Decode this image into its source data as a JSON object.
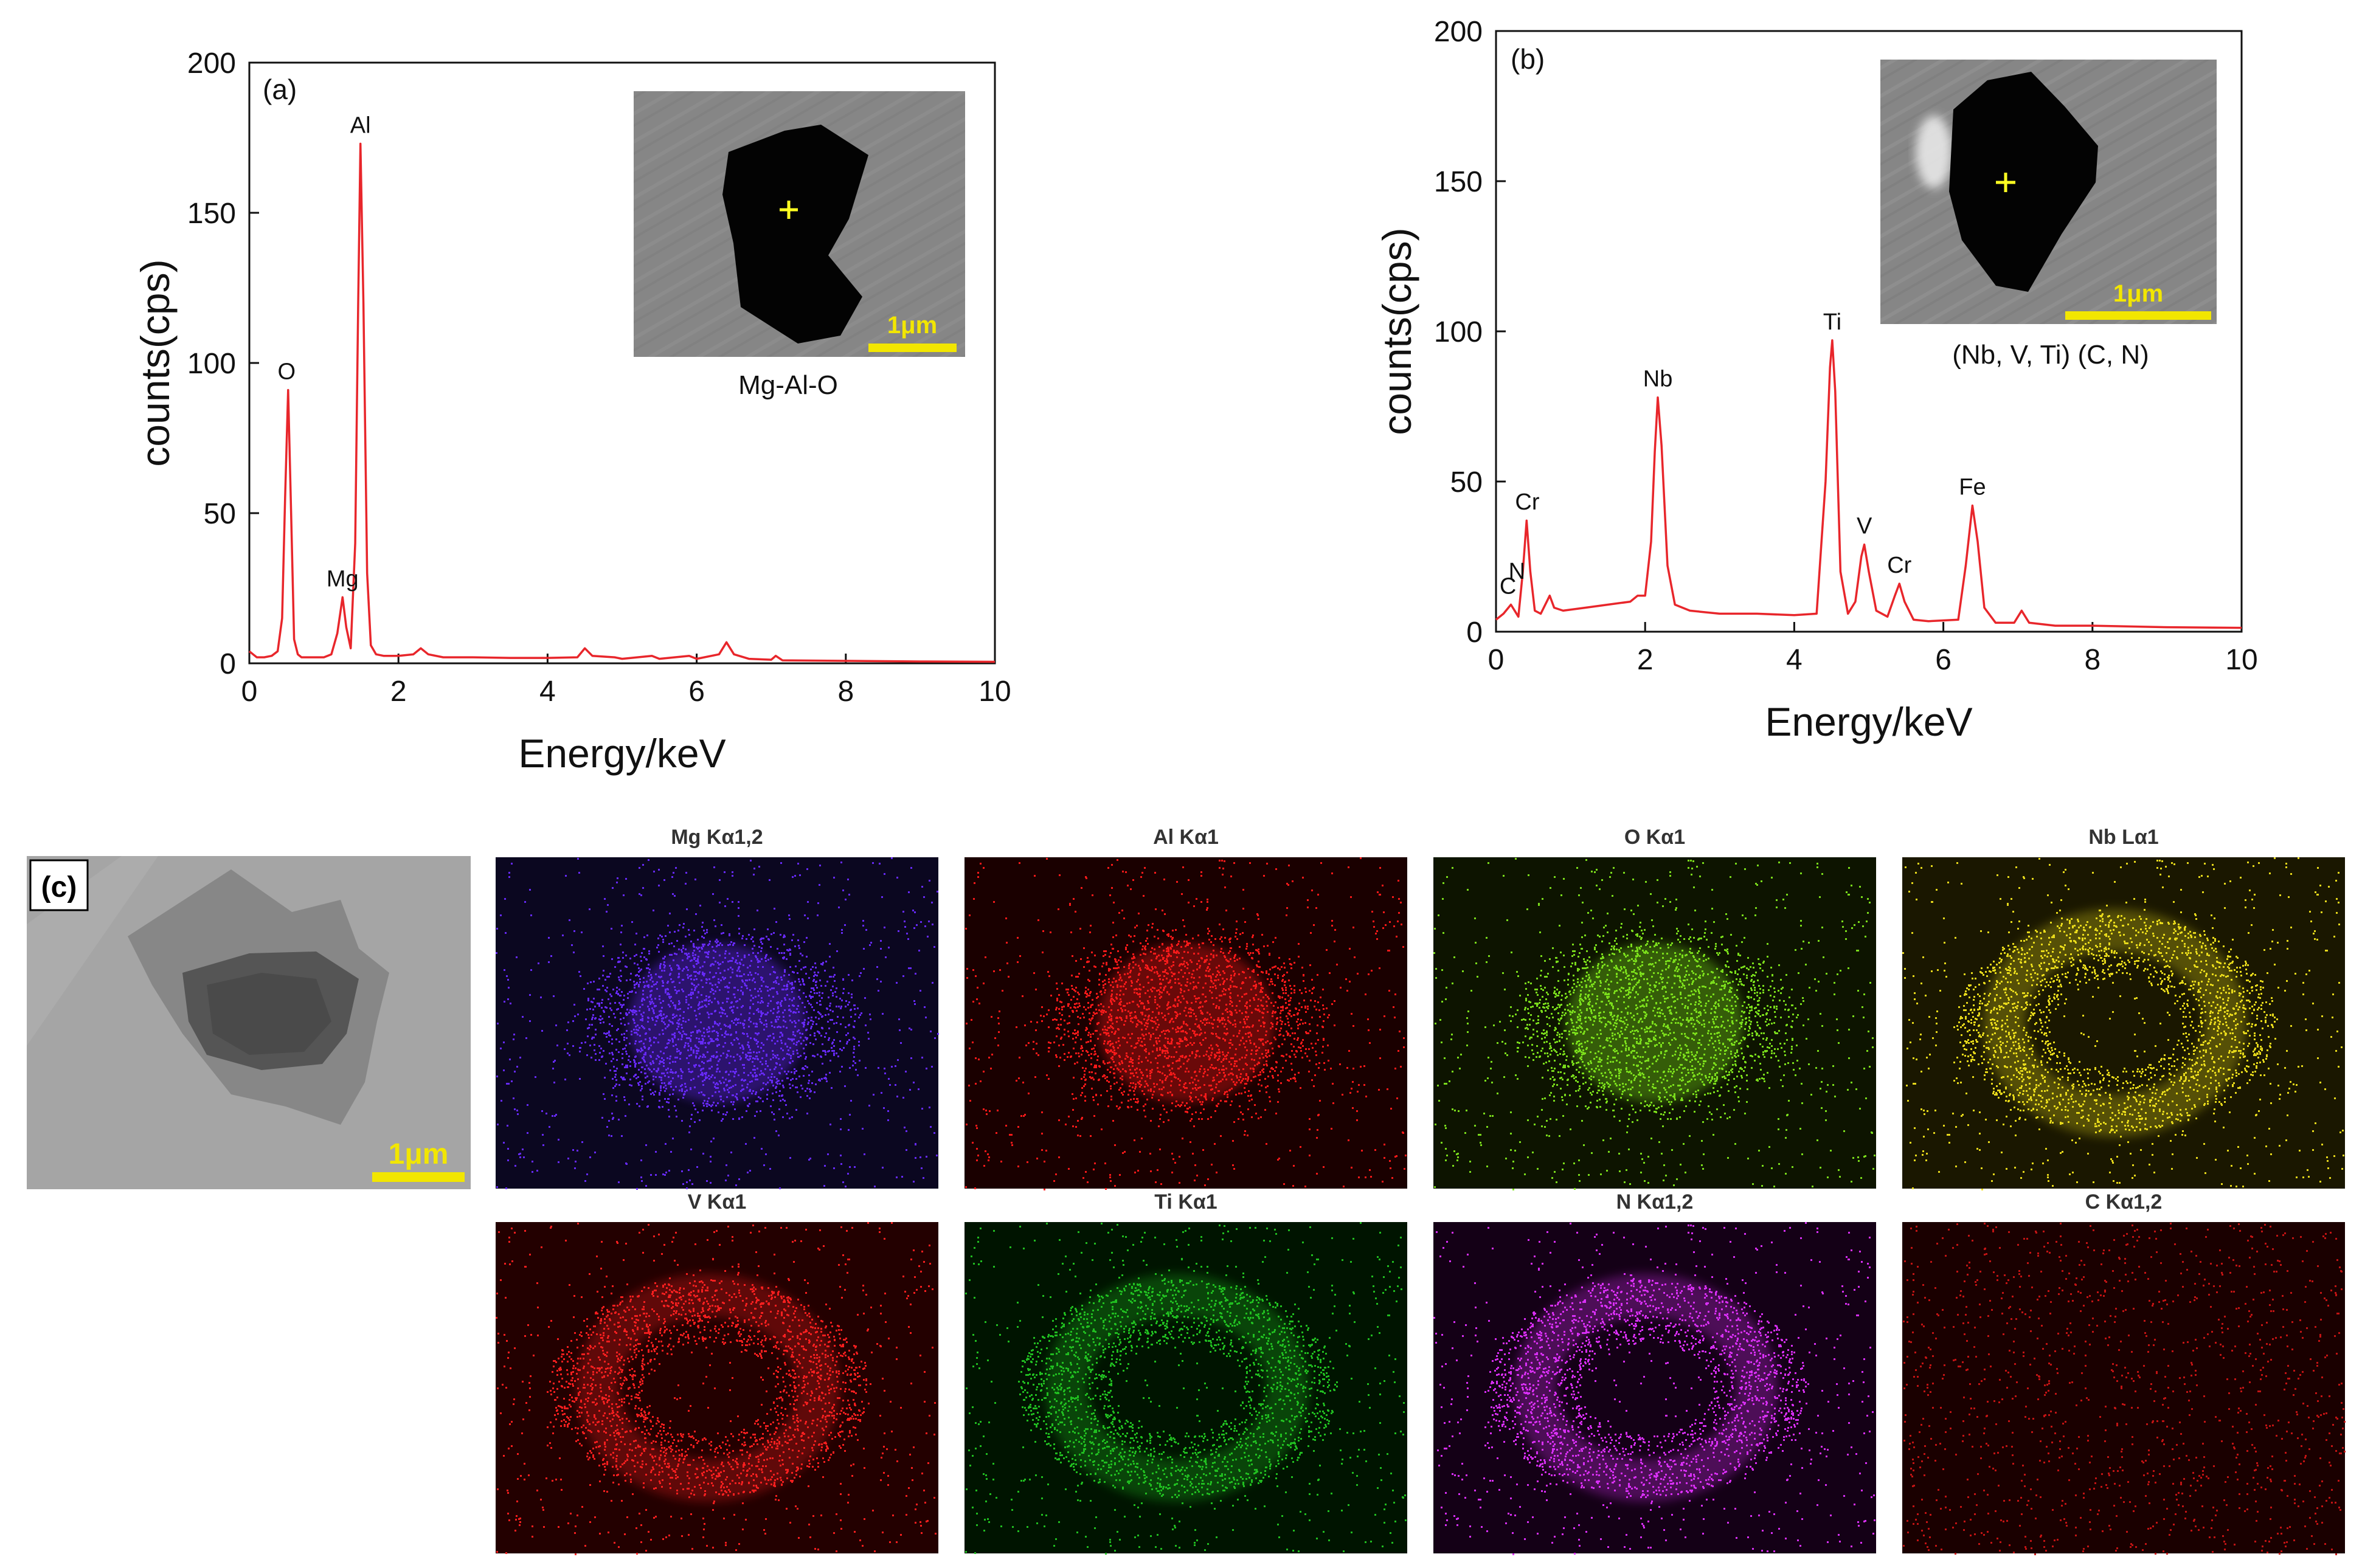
{
  "chart_data": [
    {
      "type": "line",
      "panel_label": "(a)",
      "xlabel": "Energy/keV",
      "ylabel": "counts(cps)",
      "xlim": [
        0,
        10
      ],
      "ylim": [
        0,
        200
      ],
      "xticks": [
        0,
        2,
        4,
        6,
        8,
        10
      ],
      "yticks": [
        0,
        50,
        100,
        150,
        200
      ],
      "line_color": "#e8262b",
      "series": [
        {
          "points": [
            [
              0,
              4
            ],
            [
              0.05,
              3
            ],
            [
              0.1,
              2
            ],
            [
              0.2,
              2
            ],
            [
              0.3,
              2.5
            ],
            [
              0.38,
              4
            ],
            [
              0.44,
              15
            ],
            [
              0.48,
              55
            ],
            [
              0.52,
              91
            ],
            [
              0.56,
              50
            ],
            [
              0.6,
              8
            ],
            [
              0.65,
              3
            ],
            [
              0.7,
              2
            ],
            [
              0.8,
              2
            ],
            [
              1.0,
              2
            ],
            [
              1.1,
              3
            ],
            [
              1.18,
              10
            ],
            [
              1.25,
              22
            ],
            [
              1.3,
              12
            ],
            [
              1.36,
              5
            ],
            [
              1.42,
              40
            ],
            [
              1.46,
              120
            ],
            [
              1.49,
              173
            ],
            [
              1.53,
              120
            ],
            [
              1.58,
              30
            ],
            [
              1.63,
              6
            ],
            [
              1.7,
              3
            ],
            [
              1.8,
              2.5
            ],
            [
              2.0,
              2.5
            ],
            [
              2.2,
              3
            ],
            [
              2.3,
              5
            ],
            [
              2.4,
              3
            ],
            [
              2.6,
              2
            ],
            [
              3.0,
              2
            ],
            [
              3.5,
              1.8
            ],
            [
              4.0,
              1.8
            ],
            [
              4.4,
              2
            ],
            [
              4.5,
              5
            ],
            [
              4.6,
              2.5
            ],
            [
              4.9,
              2
            ],
            [
              5.0,
              1.5
            ],
            [
              5.4,
              2.5
            ],
            [
              5.5,
              1.5
            ],
            [
              5.9,
              2.5
            ],
            [
              6.0,
              1.5
            ],
            [
              6.3,
              3
            ],
            [
              6.4,
              7
            ],
            [
              6.5,
              3
            ],
            [
              6.7,
              1.5
            ],
            [
              7.0,
              1.2
            ],
            [
              7.06,
              2.5
            ],
            [
              7.15,
              1
            ],
            [
              8,
              0.8
            ],
            [
              9,
              0.6
            ],
            [
              10,
              0.5
            ]
          ]
        }
      ],
      "annotations": [
        {
          "text": "O",
          "x": 0.5,
          "y": 91
        },
        {
          "text": "Mg",
          "x": 1.25,
          "y": 22
        },
        {
          "text": "Al",
          "x": 1.49,
          "y": 173
        }
      ],
      "inset": {
        "label": "Mg-Al-O",
        "scale_bar": "1μm"
      }
    },
    {
      "type": "line",
      "panel_label": "(b)",
      "xlabel": "Energy/keV",
      "ylabel": "counts(cps)",
      "xlim": [
        0,
        10
      ],
      "ylim": [
        0,
        200
      ],
      "xticks": [
        0,
        2,
        4,
        6,
        8,
        10
      ],
      "yticks": [
        0,
        50,
        100,
        150,
        200
      ],
      "line_color": "#e8262b",
      "series": [
        {
          "points": [
            [
              0,
              4
            ],
            [
              0.1,
              6
            ],
            [
              0.2,
              9
            ],
            [
              0.25,
              7
            ],
            [
              0.3,
              5
            ],
            [
              0.36,
              20
            ],
            [
              0.41,
              37
            ],
            [
              0.46,
              20
            ],
            [
              0.52,
              7
            ],
            [
              0.6,
              6
            ],
            [
              0.68,
              10
            ],
            [
              0.72,
              12
            ],
            [
              0.78,
              8
            ],
            [
              0.9,
              7
            ],
            [
              1.2,
              8
            ],
            [
              1.5,
              9
            ],
            [
              1.8,
              10
            ],
            [
              1.9,
              12
            ],
            [
              2.0,
              12
            ],
            [
              2.08,
              30
            ],
            [
              2.13,
              60
            ],
            [
              2.17,
              78
            ],
            [
              2.22,
              62
            ],
            [
              2.3,
              22
            ],
            [
              2.4,
              9
            ],
            [
              2.6,
              7
            ],
            [
              3,
              6
            ],
            [
              3.5,
              6
            ],
            [
              4.0,
              5.5
            ],
            [
              4.3,
              6
            ],
            [
              4.42,
              50
            ],
            [
              4.48,
              88
            ],
            [
              4.51,
              97
            ],
            [
              4.55,
              80
            ],
            [
              4.62,
              20
            ],
            [
              4.72,
              6
            ],
            [
              4.82,
              10
            ],
            [
              4.9,
              25
            ],
            [
              4.94,
              29
            ],
            [
              5.0,
              20
            ],
            [
              5.1,
              7
            ],
            [
              5.25,
              5
            ],
            [
              5.35,
              12
            ],
            [
              5.41,
              16
            ],
            [
              5.48,
              10
            ],
            [
              5.6,
              4
            ],
            [
              5.8,
              3.5
            ],
            [
              6.2,
              4
            ],
            [
              6.3,
              22
            ],
            [
              6.39,
              42
            ],
            [
              6.46,
              30
            ],
            [
              6.55,
              8
            ],
            [
              6.7,
              3
            ],
            [
              6.95,
              3
            ],
            [
              7.05,
              7
            ],
            [
              7.15,
              3
            ],
            [
              7.5,
              2
            ],
            [
              8,
              2
            ],
            [
              9,
              1.5
            ],
            [
              10,
              1.3
            ]
          ]
        }
      ],
      "annotations": [
        {
          "text": "C",
          "x": 0.16,
          "y": 9
        },
        {
          "text": "N",
          "x": 0.28,
          "y": 14
        },
        {
          "text": "Cr",
          "x": 0.42,
          "y": 37
        },
        {
          "text": "Nb",
          "x": 2.17,
          "y": 78
        },
        {
          "text": "Ti",
          "x": 4.51,
          "y": 97
        },
        {
          "text": "V",
          "x": 4.94,
          "y": 29
        },
        {
          "text": "Cr",
          "x": 5.41,
          "y": 16
        },
        {
          "text": "Fe",
          "x": 6.39,
          "y": 42
        }
      ],
      "inset": {
        "label": "(Nb, V, Ti) (C, N)",
        "scale_bar": "1μm"
      }
    }
  ],
  "panel_c": {
    "label": "(c)",
    "scale_bar": "1μm",
    "maps": [
      {
        "title": "Mg Kα1,2",
        "color": "#6a2bff",
        "pattern": "blob",
        "background": "#0b0720"
      },
      {
        "title": "Al Kα1",
        "color": "#ff1a1a",
        "pattern": "blob",
        "background": "#1a0000"
      },
      {
        "title": "O Kα1",
        "color": "#7fe51c",
        "pattern": "blob",
        "background": "#0d1400"
      },
      {
        "title": "Nb Lα1",
        "color": "#f0e21c",
        "pattern": "ring",
        "background": "#1a1700"
      },
      {
        "title": "V Kα1",
        "color": "#ff2020",
        "pattern": "ring",
        "background": "#230000"
      },
      {
        "title": "Ti Kα1",
        "color": "#22c422",
        "pattern": "ring",
        "background": "#001400"
      },
      {
        "title": "N Kα1,2",
        "color": "#e030ff",
        "pattern": "ring",
        "background": "#140016"
      },
      {
        "title": "C Kα1,2",
        "color": "#c81414",
        "pattern": "uniform",
        "background": "#1a0000"
      }
    ]
  }
}
